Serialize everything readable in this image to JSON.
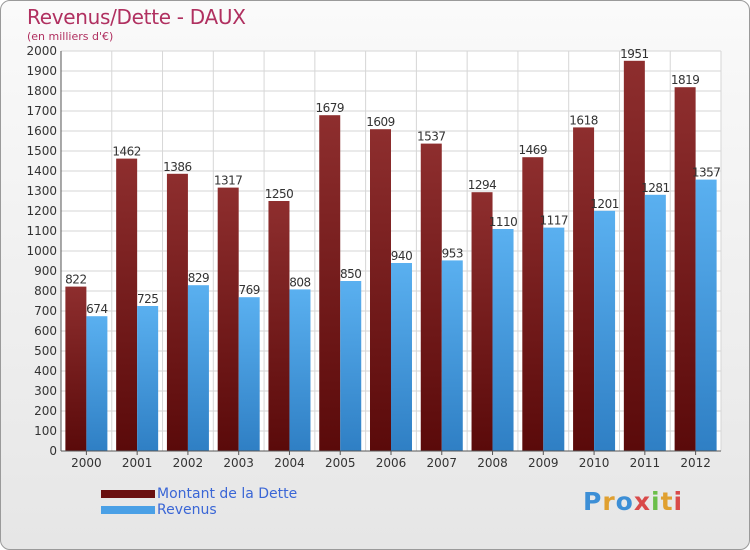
{
  "chart_data": {
    "type": "bar",
    "title": "Revenus/Dette - DAUX",
    "subtitle": "(en milliers d'€)",
    "categories": [
      "2000",
      "2001",
      "2002",
      "2003",
      "2004",
      "2005",
      "2006",
      "2007",
      "2008",
      "2009",
      "2010",
      "2011",
      "2012"
    ],
    "series": [
      {
        "name": "Montant de la Dette",
        "color": "#7a1a1a",
        "values": [
          822,
          1462,
          1386,
          1317,
          1250,
          1679,
          1609,
          1537,
          1294,
          1469,
          1618,
          1951,
          1819
        ]
      },
      {
        "name": "Revenus",
        "color": "#4aa0e6",
        "values": [
          674,
          725,
          829,
          769,
          808,
          850,
          940,
          953,
          1110,
          1117,
          1201,
          1281,
          1357
        ]
      }
    ],
    "ylim": [
      0,
      2000
    ],
    "ytick_step": 100,
    "yticks": [
      "0",
      "100",
      "200",
      "300",
      "400",
      "500",
      "600",
      "700",
      "800",
      "900",
      "1000",
      "1100",
      "1200",
      "1300",
      "1400",
      "1500",
      "1600",
      "1700",
      "1800",
      "1900",
      "2000"
    ],
    "grid": true,
    "legend_position": "bottom-left"
  },
  "logo": {
    "text": "Proxiti"
  }
}
